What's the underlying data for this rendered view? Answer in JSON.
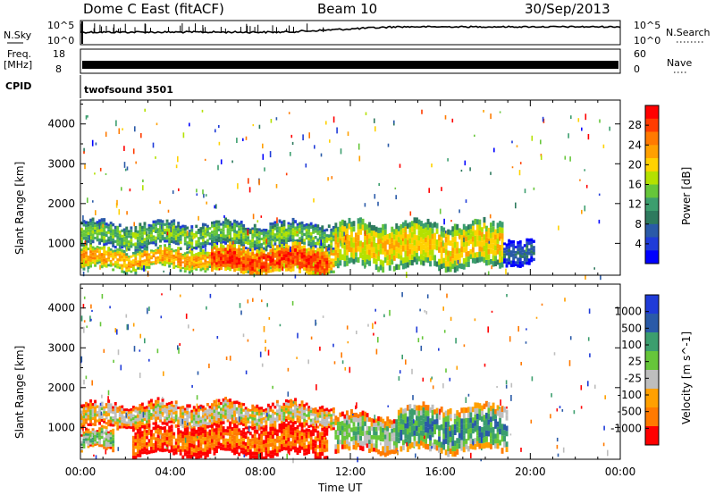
{
  "header": {
    "station": "Dome C East (fitACF)",
    "beam": "Beam 10",
    "date": "30/Sep/2013"
  },
  "strip_panels": {
    "nsky_label": "N.Sky",
    "nsky_ticks": [
      "10^5",
      "10^0"
    ],
    "nsearch_label": "N.Search",
    "nsearch_ticks": [
      "10^5",
      "10^0"
    ],
    "freq_label": "Freq.",
    "freq_unit": "[MHz]",
    "freq_ticks": [
      "18",
      "8"
    ],
    "nave_label": "Nave",
    "nave_ticks": [
      "60",
      "0"
    ],
    "cpid_label": "CPID",
    "cpid_value": "twofsound 3501"
  },
  "chart_data": [
    {
      "type": "heatmap",
      "name": "power",
      "ylabel": "Slant Range [km]",
      "xlabel": "Time UT",
      "x_ticks": [
        "00:00",
        "04:00",
        "08:00",
        "12:00",
        "16:00",
        "20:00",
        "00:00"
      ],
      "x_range_hours": [
        0,
        24
      ],
      "ylim": [
        200,
        4600
      ],
      "y_ticks": [
        1000,
        2000,
        3000,
        4000
      ],
      "colorbar": {
        "label": "Power [dB]",
        "ticks": [
          "28",
          "24",
          "20",
          "16",
          "12",
          "8",
          "4"
        ],
        "colors": [
          "#ff0000",
          "#ff3c00",
          "#ff7a00",
          "#ffa000",
          "#ffd200",
          "#b4e100",
          "#66c63a",
          "#3c9e6e",
          "#2e7a5e",
          "#2a5aa8",
          "#1f3bd8",
          "#0000ff"
        ]
      },
      "bands": [
        {
          "t0": 0.0,
          "t1": 11.3,
          "r0": 900,
          "r1": 1500,
          "level": 6
        },
        {
          "t0": 0.0,
          "t1": 11.3,
          "r0": 350,
          "r1": 850,
          "level": 3
        },
        {
          "t0": 5.8,
          "t1": 11.0,
          "r0": 250,
          "r1": 900,
          "level": 1
        },
        {
          "t0": 11.3,
          "t1": 18.8,
          "r0": 400,
          "r1": 1500,
          "level": 4
        },
        {
          "t0": 18.8,
          "t1": 20.2,
          "r0": 500,
          "r1": 1100,
          "level": 9
        }
      ]
    },
    {
      "type": "heatmap",
      "name": "velocity",
      "ylabel": "Slant Range [km]",
      "xlabel": "Time UT",
      "x_ticks": [
        "00:00",
        "04:00",
        "08:00",
        "12:00",
        "16:00",
        "20:00",
        "00:00"
      ],
      "x_range_hours": [
        0,
        24
      ],
      "ylim": [
        200,
        4600
      ],
      "y_ticks": [
        1000,
        2000,
        3000,
        4000
      ],
      "colorbar": {
        "label": "Velocity [m s^-1]",
        "ticks": [
          "1000",
          "500",
          "100",
          "25",
          "-25",
          "-100",
          "-500",
          "-1000"
        ],
        "colors": [
          "#1f3bd8",
          "#2a5aa8",
          "#3c9e6e",
          "#66c63a",
          "#bebebe",
          "#ffa000",
          "#ff7a00",
          "#ff0000"
        ]
      },
      "bands": [
        {
          "t0": 0.0,
          "t1": 11.3,
          "r0": 1000,
          "r1": 1600,
          "level": 4
        },
        {
          "t0": 0.0,
          "t1": 1.5,
          "r0": 400,
          "r1": 900,
          "level": 3
        },
        {
          "t0": 2.3,
          "t1": 11.0,
          "r0": 300,
          "r1": 1000,
          "level": 6
        },
        {
          "t0": 11.3,
          "t1": 14.0,
          "r0": 400,
          "r1": 1300,
          "level": 3
        },
        {
          "t0": 14.0,
          "t1": 19.0,
          "r0": 400,
          "r1": 1500,
          "level": 2
        }
      ]
    }
  ]
}
